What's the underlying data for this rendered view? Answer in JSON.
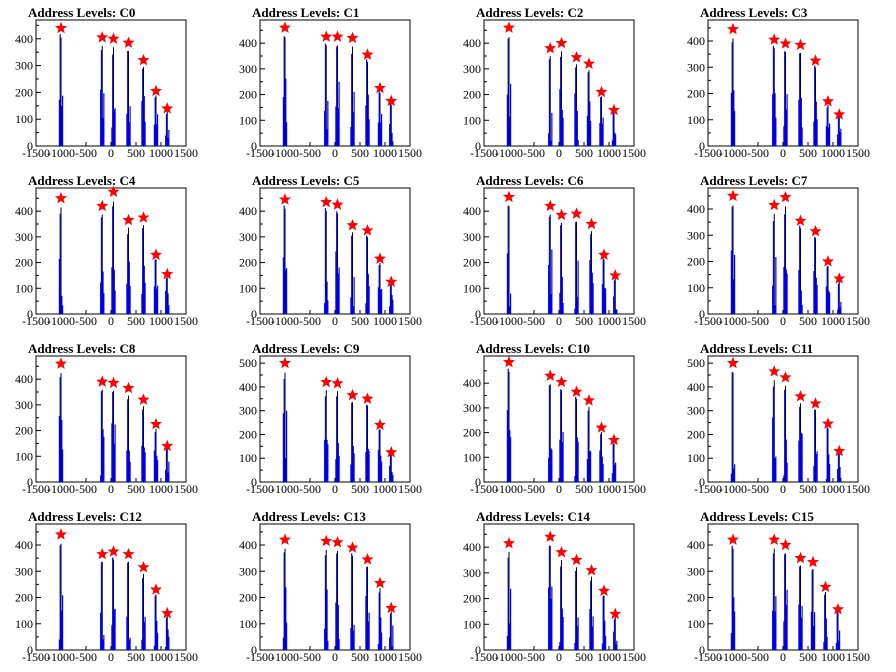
{
  "chart_data": [
    {
      "type": "histogram",
      "title": "Address Levels: C0",
      "x_ticks": [
        "-1500",
        "-1000",
        "-500",
        "0",
        "500",
        "1000",
        "1500"
      ],
      "y_ticks": [
        "0",
        "100",
        "200",
        "300",
        "400"
      ],
      "xlim": [
        -1500,
        1500
      ],
      "ylim": [
        0,
        470
      ],
      "levels": [
        -1000,
        -175,
        50,
        350,
        650,
        900,
        1125
      ],
      "peak_values": [
        440,
        405,
        400,
        385,
        320,
        205,
        140
      ],
      "red_star_markers": [
        {
          "x": -1000,
          "y": 440
        },
        {
          "x": -175,
          "y": 405
        },
        {
          "x": 50,
          "y": 400
        },
        {
          "x": 350,
          "y": 385
        },
        {
          "x": 650,
          "y": 320
        },
        {
          "x": 900,
          "y": 205
        },
        {
          "x": 1125,
          "y": 140
        }
      ]
    },
    {
      "type": "histogram",
      "title": "Address Levels: C1",
      "x_ticks": [
        "-1500",
        "-1000",
        "-500",
        "0",
        "500",
        "1000",
        "1500"
      ],
      "y_ticks": [
        "0",
        "100",
        "200",
        "300",
        "400"
      ],
      "xlim": [
        -1500,
        1500
      ],
      "ylim": [
        0,
        490
      ],
      "levels": [
        -1000,
        -175,
        50,
        350,
        650,
        900,
        1125
      ],
      "peak_values": [
        460,
        425,
        425,
        420,
        355,
        225,
        175
      ],
      "red_star_markers": [
        {
          "x": -1000,
          "y": 460
        },
        {
          "x": -175,
          "y": 425
        },
        {
          "x": 50,
          "y": 425
        },
        {
          "x": 350,
          "y": 420
        },
        {
          "x": 650,
          "y": 355
        },
        {
          "x": 900,
          "y": 225
        },
        {
          "x": 1125,
          "y": 175
        }
      ]
    },
    {
      "type": "histogram",
      "title": "Address Levels: C2",
      "x_ticks": [
        "-1500",
        "-1000",
        "-500",
        "0",
        "500",
        "1000",
        "1500"
      ],
      "y_ticks": [
        "0",
        "100",
        "200",
        "300",
        "400"
      ],
      "xlim": [
        -1500,
        1500
      ],
      "ylim": [
        0,
        490
      ],
      "levels": [
        -1000,
        -175,
        50,
        350,
        600,
        850,
        1100
      ],
      "peak_values": [
        460,
        380,
        400,
        345,
        320,
        210,
        140
      ],
      "red_star_markers": [
        {
          "x": -1000,
          "y": 460
        },
        {
          "x": -175,
          "y": 380
        },
        {
          "x": 50,
          "y": 400
        },
        {
          "x": 350,
          "y": 345
        },
        {
          "x": 600,
          "y": 320
        },
        {
          "x": 850,
          "y": 210
        },
        {
          "x": 1100,
          "y": 140
        }
      ]
    },
    {
      "type": "histogram",
      "title": "Address Levels: C3",
      "x_ticks": [
        "-1500",
        "-1000",
        "-500",
        "0",
        "500",
        "1000",
        "1500"
      ],
      "y_ticks": [
        "0",
        "100",
        "200",
        "300",
        "400"
      ],
      "xlim": [
        -1500,
        1500
      ],
      "ylim": [
        0,
        480
      ],
      "levels": [
        -1000,
        -175,
        50,
        350,
        650,
        900,
        1125
      ],
      "peak_values": [
        445,
        405,
        390,
        385,
        325,
        170,
        120
      ],
      "red_star_markers": [
        {
          "x": -1000,
          "y": 445
        },
        {
          "x": -175,
          "y": 405
        },
        {
          "x": 50,
          "y": 390
        },
        {
          "x": 350,
          "y": 385
        },
        {
          "x": 650,
          "y": 325
        },
        {
          "x": 900,
          "y": 170
        },
        {
          "x": 1125,
          "y": 120
        }
      ]
    },
    {
      "type": "histogram",
      "title": "Address Levels: C4",
      "x_ticks": [
        "-1500",
        "-1000",
        "-500",
        "0",
        "500",
        "1000",
        "1500"
      ],
      "y_ticks": [
        "0",
        "100",
        "200",
        "300",
        "400"
      ],
      "xlim": [
        -1500,
        1500
      ],
      "ylim": [
        0,
        490
      ],
      "levels": [
        -1000,
        -175,
        50,
        350,
        650,
        900,
        1125
      ],
      "peak_values": [
        450,
        420,
        475,
        365,
        375,
        230,
        155
      ],
      "red_star_markers": [
        {
          "x": -1000,
          "y": 450
        },
        {
          "x": -175,
          "y": 420
        },
        {
          "x": 50,
          "y": 475
        },
        {
          "x": 350,
          "y": 365
        },
        {
          "x": 650,
          "y": 375
        },
        {
          "x": 900,
          "y": 230
        },
        {
          "x": 1125,
          "y": 155
        }
      ]
    },
    {
      "type": "histogram",
      "title": "Address Levels: C5",
      "x_ticks": [
        "-1500",
        "-1000",
        "-500",
        "0",
        "500",
        "1000",
        "1500"
      ],
      "y_ticks": [
        "0",
        "100",
        "200",
        "300",
        "400"
      ],
      "xlim": [
        -1500,
        1500
      ],
      "ylim": [
        0,
        490
      ],
      "levels": [
        -1000,
        -175,
        50,
        350,
        650,
        900,
        1125
      ],
      "peak_values": [
        445,
        435,
        425,
        345,
        325,
        215,
        125
      ],
      "red_star_markers": [
        {
          "x": -1000,
          "y": 445
        },
        {
          "x": -175,
          "y": 435
        },
        {
          "x": 50,
          "y": 425
        },
        {
          "x": 350,
          "y": 345
        },
        {
          "x": 650,
          "y": 325
        },
        {
          "x": 900,
          "y": 215
        },
        {
          "x": 1125,
          "y": 125
        }
      ]
    },
    {
      "type": "histogram",
      "title": "Address Levels: C6",
      "x_ticks": [
        "-1500",
        "-1000",
        "-500",
        "0",
        "500",
        "1000",
        "1500"
      ],
      "y_ticks": [
        "0",
        "100",
        "200",
        "300",
        "400"
      ],
      "xlim": [
        -1500,
        1500
      ],
      "ylim": [
        0,
        490
      ],
      "levels": [
        -1000,
        -175,
        50,
        350,
        650,
        900,
        1125
      ],
      "peak_values": [
        455,
        420,
        385,
        390,
        350,
        230,
        150
      ],
      "red_star_markers": [
        {
          "x": -1000,
          "y": 455
        },
        {
          "x": -175,
          "y": 420
        },
        {
          "x": 50,
          "y": 385
        },
        {
          "x": 350,
          "y": 390
        },
        {
          "x": 650,
          "y": 350
        },
        {
          "x": 900,
          "y": 230
        },
        {
          "x": 1125,
          "y": 150
        }
      ]
    },
    {
      "type": "histogram",
      "title": "Address Levels: C7",
      "x_ticks": [
        "-1500",
        "-1000",
        "-500",
        "0",
        "500",
        "1000",
        "1500"
      ],
      "y_ticks": [
        "0",
        "100",
        "200",
        "300",
        "400"
      ],
      "xlim": [
        -1500,
        1500
      ],
      "ylim": [
        0,
        480
      ],
      "levels": [
        -1000,
        -175,
        50,
        350,
        650,
        900,
        1125
      ],
      "peak_values": [
        450,
        415,
        445,
        355,
        315,
        200,
        135
      ],
      "red_star_markers": [
        {
          "x": -1000,
          "y": 450
        },
        {
          "x": -175,
          "y": 415
        },
        {
          "x": 50,
          "y": 445
        },
        {
          "x": 350,
          "y": 355
        },
        {
          "x": 650,
          "y": 315
        },
        {
          "x": 900,
          "y": 200
        },
        {
          "x": 1125,
          "y": 135
        }
      ]
    },
    {
      "type": "histogram",
      "title": "Address Levels: C8",
      "x_ticks": [
        "-1500",
        "-1000",
        "-500",
        "0",
        "500",
        "1000",
        "1500"
      ],
      "y_ticks": [
        "0",
        "100",
        "200",
        "300",
        "400"
      ],
      "xlim": [
        -1500,
        1500
      ],
      "ylim": [
        0,
        490
      ],
      "levels": [
        -1000,
        -175,
        50,
        350,
        650,
        900,
        1125
      ],
      "peak_values": [
        460,
        390,
        385,
        365,
        320,
        225,
        140
      ],
      "red_star_markers": [
        {
          "x": -1000,
          "y": 460
        },
        {
          "x": -175,
          "y": 390
        },
        {
          "x": 50,
          "y": 385
        },
        {
          "x": 350,
          "y": 365
        },
        {
          "x": 650,
          "y": 320
        },
        {
          "x": 900,
          "y": 225
        },
        {
          "x": 1125,
          "y": 140
        }
      ]
    },
    {
      "type": "histogram",
      "title": "Address Levels: C9",
      "x_ticks": [
        "-1500",
        "-1000",
        "-500",
        "0",
        "500",
        "1000",
        "1500"
      ],
      "y_ticks": [
        "0",
        "100",
        "200",
        "300",
        "400",
        "500"
      ],
      "xlim": [
        -1500,
        1500
      ],
      "ylim": [
        0,
        530
      ],
      "levels": [
        -1000,
        -175,
        50,
        350,
        650,
        900,
        1125
      ],
      "peak_values": [
        500,
        420,
        415,
        365,
        350,
        240,
        125
      ],
      "red_star_markers": [
        {
          "x": -1000,
          "y": 500
        },
        {
          "x": -175,
          "y": 420
        },
        {
          "x": 50,
          "y": 415
        },
        {
          "x": 350,
          "y": 365
        },
        {
          "x": 650,
          "y": 350
        },
        {
          "x": 900,
          "y": 240
        },
        {
          "x": 1125,
          "y": 125
        }
      ]
    },
    {
      "type": "histogram",
      "title": "Address Levels: C10",
      "x_ticks": [
        "-1500",
        "-1000",
        "-500",
        "0",
        "500",
        "1000",
        "1500"
      ],
      "y_ticks": [
        "0",
        "100",
        "200",
        "300",
        "400"
      ],
      "xlim": [
        -1500,
        1500
      ],
      "ylim": [
        0,
        510
      ],
      "levels": [
        -1000,
        -175,
        50,
        350,
        600,
        850,
        1100
      ],
      "peak_values": [
        485,
        430,
        405,
        365,
        330,
        220,
        170
      ],
      "red_star_markers": [
        {
          "x": -1000,
          "y": 485
        },
        {
          "x": -175,
          "y": 430
        },
        {
          "x": 50,
          "y": 405
        },
        {
          "x": 350,
          "y": 365
        },
        {
          "x": 600,
          "y": 330
        },
        {
          "x": 850,
          "y": 220
        },
        {
          "x": 1100,
          "y": 170
        }
      ]
    },
    {
      "type": "histogram",
      "title": "Address Levels: C11",
      "x_ticks": [
        "-1500",
        "-1000",
        "-500",
        "0",
        "500",
        "1000",
        "1500"
      ],
      "y_ticks": [
        "0",
        "100",
        "200",
        "300",
        "400",
        "500"
      ],
      "xlim": [
        -1500,
        1500
      ],
      "ylim": [
        0,
        530
      ],
      "levels": [
        -1000,
        -175,
        50,
        350,
        650,
        900,
        1125
      ],
      "peak_values": [
        500,
        465,
        440,
        360,
        330,
        245,
        130
      ],
      "red_star_markers": [
        {
          "x": -1000,
          "y": 500
        },
        {
          "x": -175,
          "y": 465
        },
        {
          "x": 50,
          "y": 440
        },
        {
          "x": 350,
          "y": 360
        },
        {
          "x": 650,
          "y": 330
        },
        {
          "x": 900,
          "y": 245
        },
        {
          "x": 1125,
          "y": 130
        }
      ]
    },
    {
      "type": "histogram",
      "title": "Address Levels: C12",
      "x_ticks": [
        "-1500",
        "-1000",
        "-500",
        "0",
        "500",
        "1000",
        "1500"
      ],
      "y_ticks": [
        "0",
        "100",
        "200",
        "300",
        "400"
      ],
      "xlim": [
        -1500,
        1500
      ],
      "ylim": [
        0,
        480
      ],
      "levels": [
        -1000,
        -175,
        50,
        350,
        650,
        900,
        1125
      ],
      "peak_values": [
        440,
        365,
        375,
        365,
        315,
        230,
        140
      ],
      "red_star_markers": [
        {
          "x": -1000,
          "y": 440
        },
        {
          "x": -175,
          "y": 365
        },
        {
          "x": 50,
          "y": 375
        },
        {
          "x": 350,
          "y": 365
        },
        {
          "x": 650,
          "y": 315
        },
        {
          "x": 900,
          "y": 230
        },
        {
          "x": 1125,
          "y": 140
        }
      ]
    },
    {
      "type": "histogram",
      "title": "Address Levels: C13",
      "x_ticks": [
        "-1500",
        "-1000",
        "-500",
        "0",
        "500",
        "1000",
        "1500"
      ],
      "y_ticks": [
        "0",
        "100",
        "200",
        "300",
        "400"
      ],
      "xlim": [
        -1500,
        1500
      ],
      "ylim": [
        0,
        480
      ],
      "levels": [
        -1000,
        -175,
        50,
        350,
        650,
        900,
        1125
      ],
      "peak_values": [
        420,
        415,
        410,
        390,
        345,
        255,
        160
      ],
      "red_star_markers": [
        {
          "x": -1000,
          "y": 420
        },
        {
          "x": -175,
          "y": 415
        },
        {
          "x": 50,
          "y": 410
        },
        {
          "x": 350,
          "y": 390
        },
        {
          "x": 650,
          "y": 345
        },
        {
          "x": 900,
          "y": 255
        },
        {
          "x": 1125,
          "y": 160
        }
      ]
    },
    {
      "type": "histogram",
      "title": "Address Levels: C14",
      "x_ticks": [
        "-1500",
        "-1000",
        "-500",
        "0",
        "500",
        "1000",
        "1500"
      ],
      "y_ticks": [
        "0",
        "100",
        "200",
        "300",
        "400"
      ],
      "xlim": [
        -1500,
        1500
      ],
      "ylim": [
        0,
        490
      ],
      "levels": [
        -1000,
        -175,
        50,
        350,
        650,
        900,
        1125
      ],
      "peak_values": [
        415,
        440,
        380,
        350,
        310,
        230,
        140
      ],
      "red_star_markers": [
        {
          "x": -1000,
          "y": 415
        },
        {
          "x": -175,
          "y": 440
        },
        {
          "x": 50,
          "y": 380
        },
        {
          "x": 350,
          "y": 350
        },
        {
          "x": 650,
          "y": 310
        },
        {
          "x": 900,
          "y": 230
        },
        {
          "x": 1125,
          "y": 140
        }
      ]
    },
    {
      "type": "histogram",
      "title": "Address Levels: C15",
      "x_ticks": [
        "-1500",
        "-1000",
        "-500",
        "0",
        "500",
        "1000",
        "1500"
      ],
      "y_ticks": [
        "0",
        "100",
        "200",
        "300",
        "400"
      ],
      "xlim": [
        -1500,
        1500
      ],
      "ylim": [
        0,
        480
      ],
      "levels": [
        -1000,
        -175,
        50,
        350,
        600,
        850,
        1100
      ],
      "peak_values": [
        420,
        420,
        400,
        350,
        335,
        240,
        155
      ],
      "red_star_markers": [
        {
          "x": -1000,
          "y": 420
        },
        {
          "x": -175,
          "y": 420
        },
        {
          "x": 50,
          "y": 400
        },
        {
          "x": 350,
          "y": 350
        },
        {
          "x": 600,
          "y": 335
        },
        {
          "x": 850,
          "y": 240
        },
        {
          "x": 1100,
          "y": 155
        }
      ]
    }
  ],
  "colors": {
    "background": "#ffffff",
    "frame": "#000000",
    "histogram_blue": "#0000ff",
    "histogram_black": "#000000",
    "star_fill": "#ff0000",
    "star_outline": "#ff0000"
  }
}
